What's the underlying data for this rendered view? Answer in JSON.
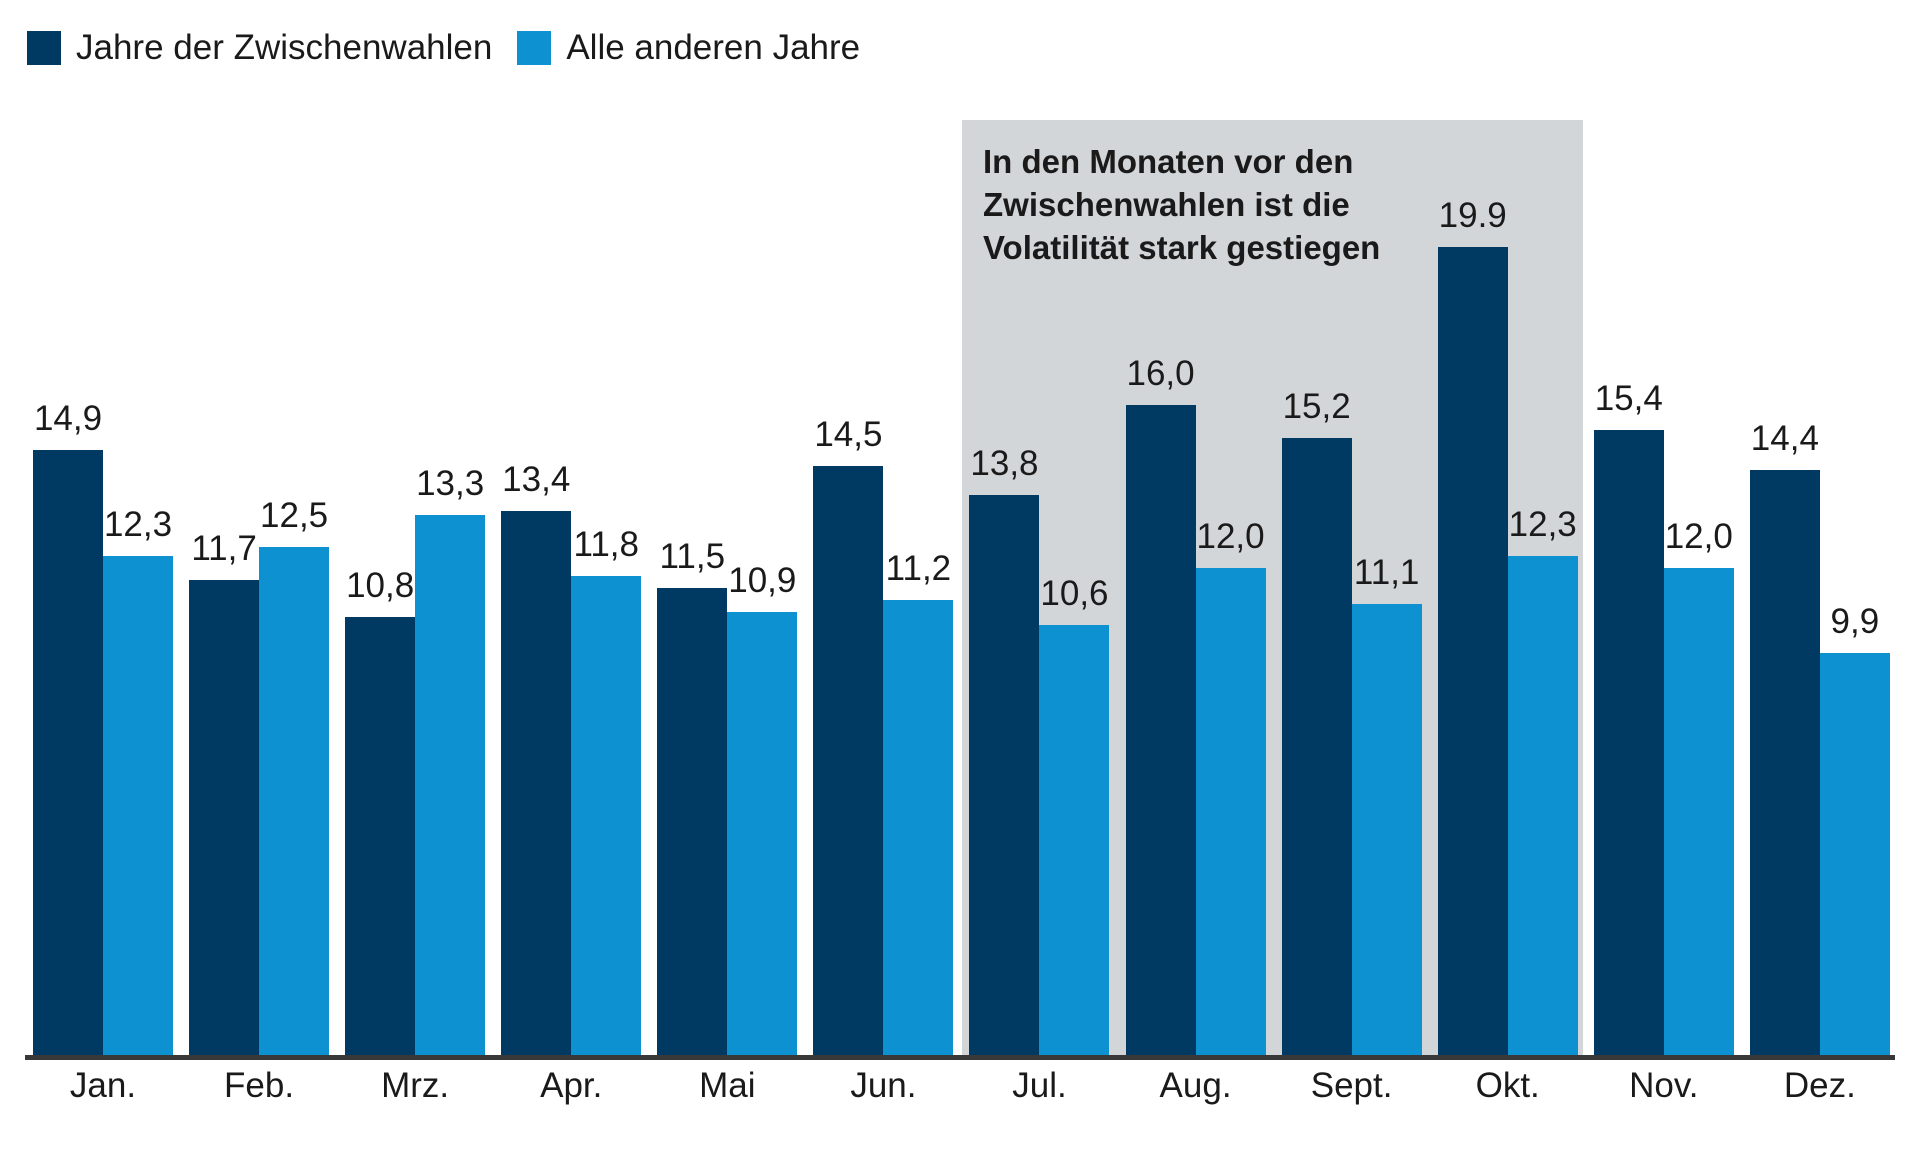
{
  "legend": {
    "items": [
      {
        "label": "Jahre der Zwischenwahlen",
        "color": "#003a63"
      },
      {
        "label": "Alle anderen Jahre",
        "color": "#0e91d1"
      }
    ]
  },
  "annotation": {
    "lines": [
      "In den Monaten vor den",
      "Zwischenwahlen ist die",
      "Volatilität stark gestiegen"
    ]
  },
  "colors": {
    "series_dark": "#003a63",
    "series_light": "#0e91d1",
    "highlight_box": "#d2d6d8",
    "axis_line": "#383838",
    "text": "#1a1a1a"
  },
  "chart_data": {
    "type": "bar",
    "title": "",
    "xlabel": "",
    "ylabel": "",
    "ylim": [
      0,
      20
    ],
    "grid": false,
    "legend_position": "top-left",
    "categories": [
      "Jan.",
      "Feb.",
      "Mrz.",
      "Apr.",
      "Mai",
      "Jun.",
      "Jul.",
      "Aug.",
      "Sept.",
      "Okt.",
      "Nov.",
      "Dez."
    ],
    "series": [
      {
        "name": "Jahre der Zwischenwahlen",
        "color": "#003a63",
        "values": [
          14.9,
          11.7,
          10.8,
          13.4,
          11.5,
          14.5,
          13.8,
          16.0,
          15.2,
          19.9,
          15.4,
          14.4
        ],
        "labels": [
          "14,9",
          "11,7",
          "10,8",
          "13,4",
          "11,5",
          "14,5",
          "13,8",
          "16,0",
          "15,2",
          "19.9",
          "15,4",
          "14,4"
        ]
      },
      {
        "name": "Alle anderen Jahre",
        "color": "#0e91d1",
        "values": [
          12.3,
          12.5,
          13.3,
          11.8,
          10.9,
          11.2,
          10.6,
          12.0,
          11.1,
          12.3,
          12.0,
          9.9
        ],
        "labels": [
          "12,3",
          "12,5",
          "13,3",
          "11,8",
          "10,9",
          "11,2",
          "10,6",
          "12,0",
          "11,1",
          "12,3",
          "12,0",
          "9,9"
        ]
      }
    ],
    "highlight": {
      "categories": [
        "Jul.",
        "Aug.",
        "Sept.",
        "Okt."
      ],
      "note": "In den Monaten vor den Zwischenwahlen ist die Volatilität stark gestiegen"
    }
  }
}
